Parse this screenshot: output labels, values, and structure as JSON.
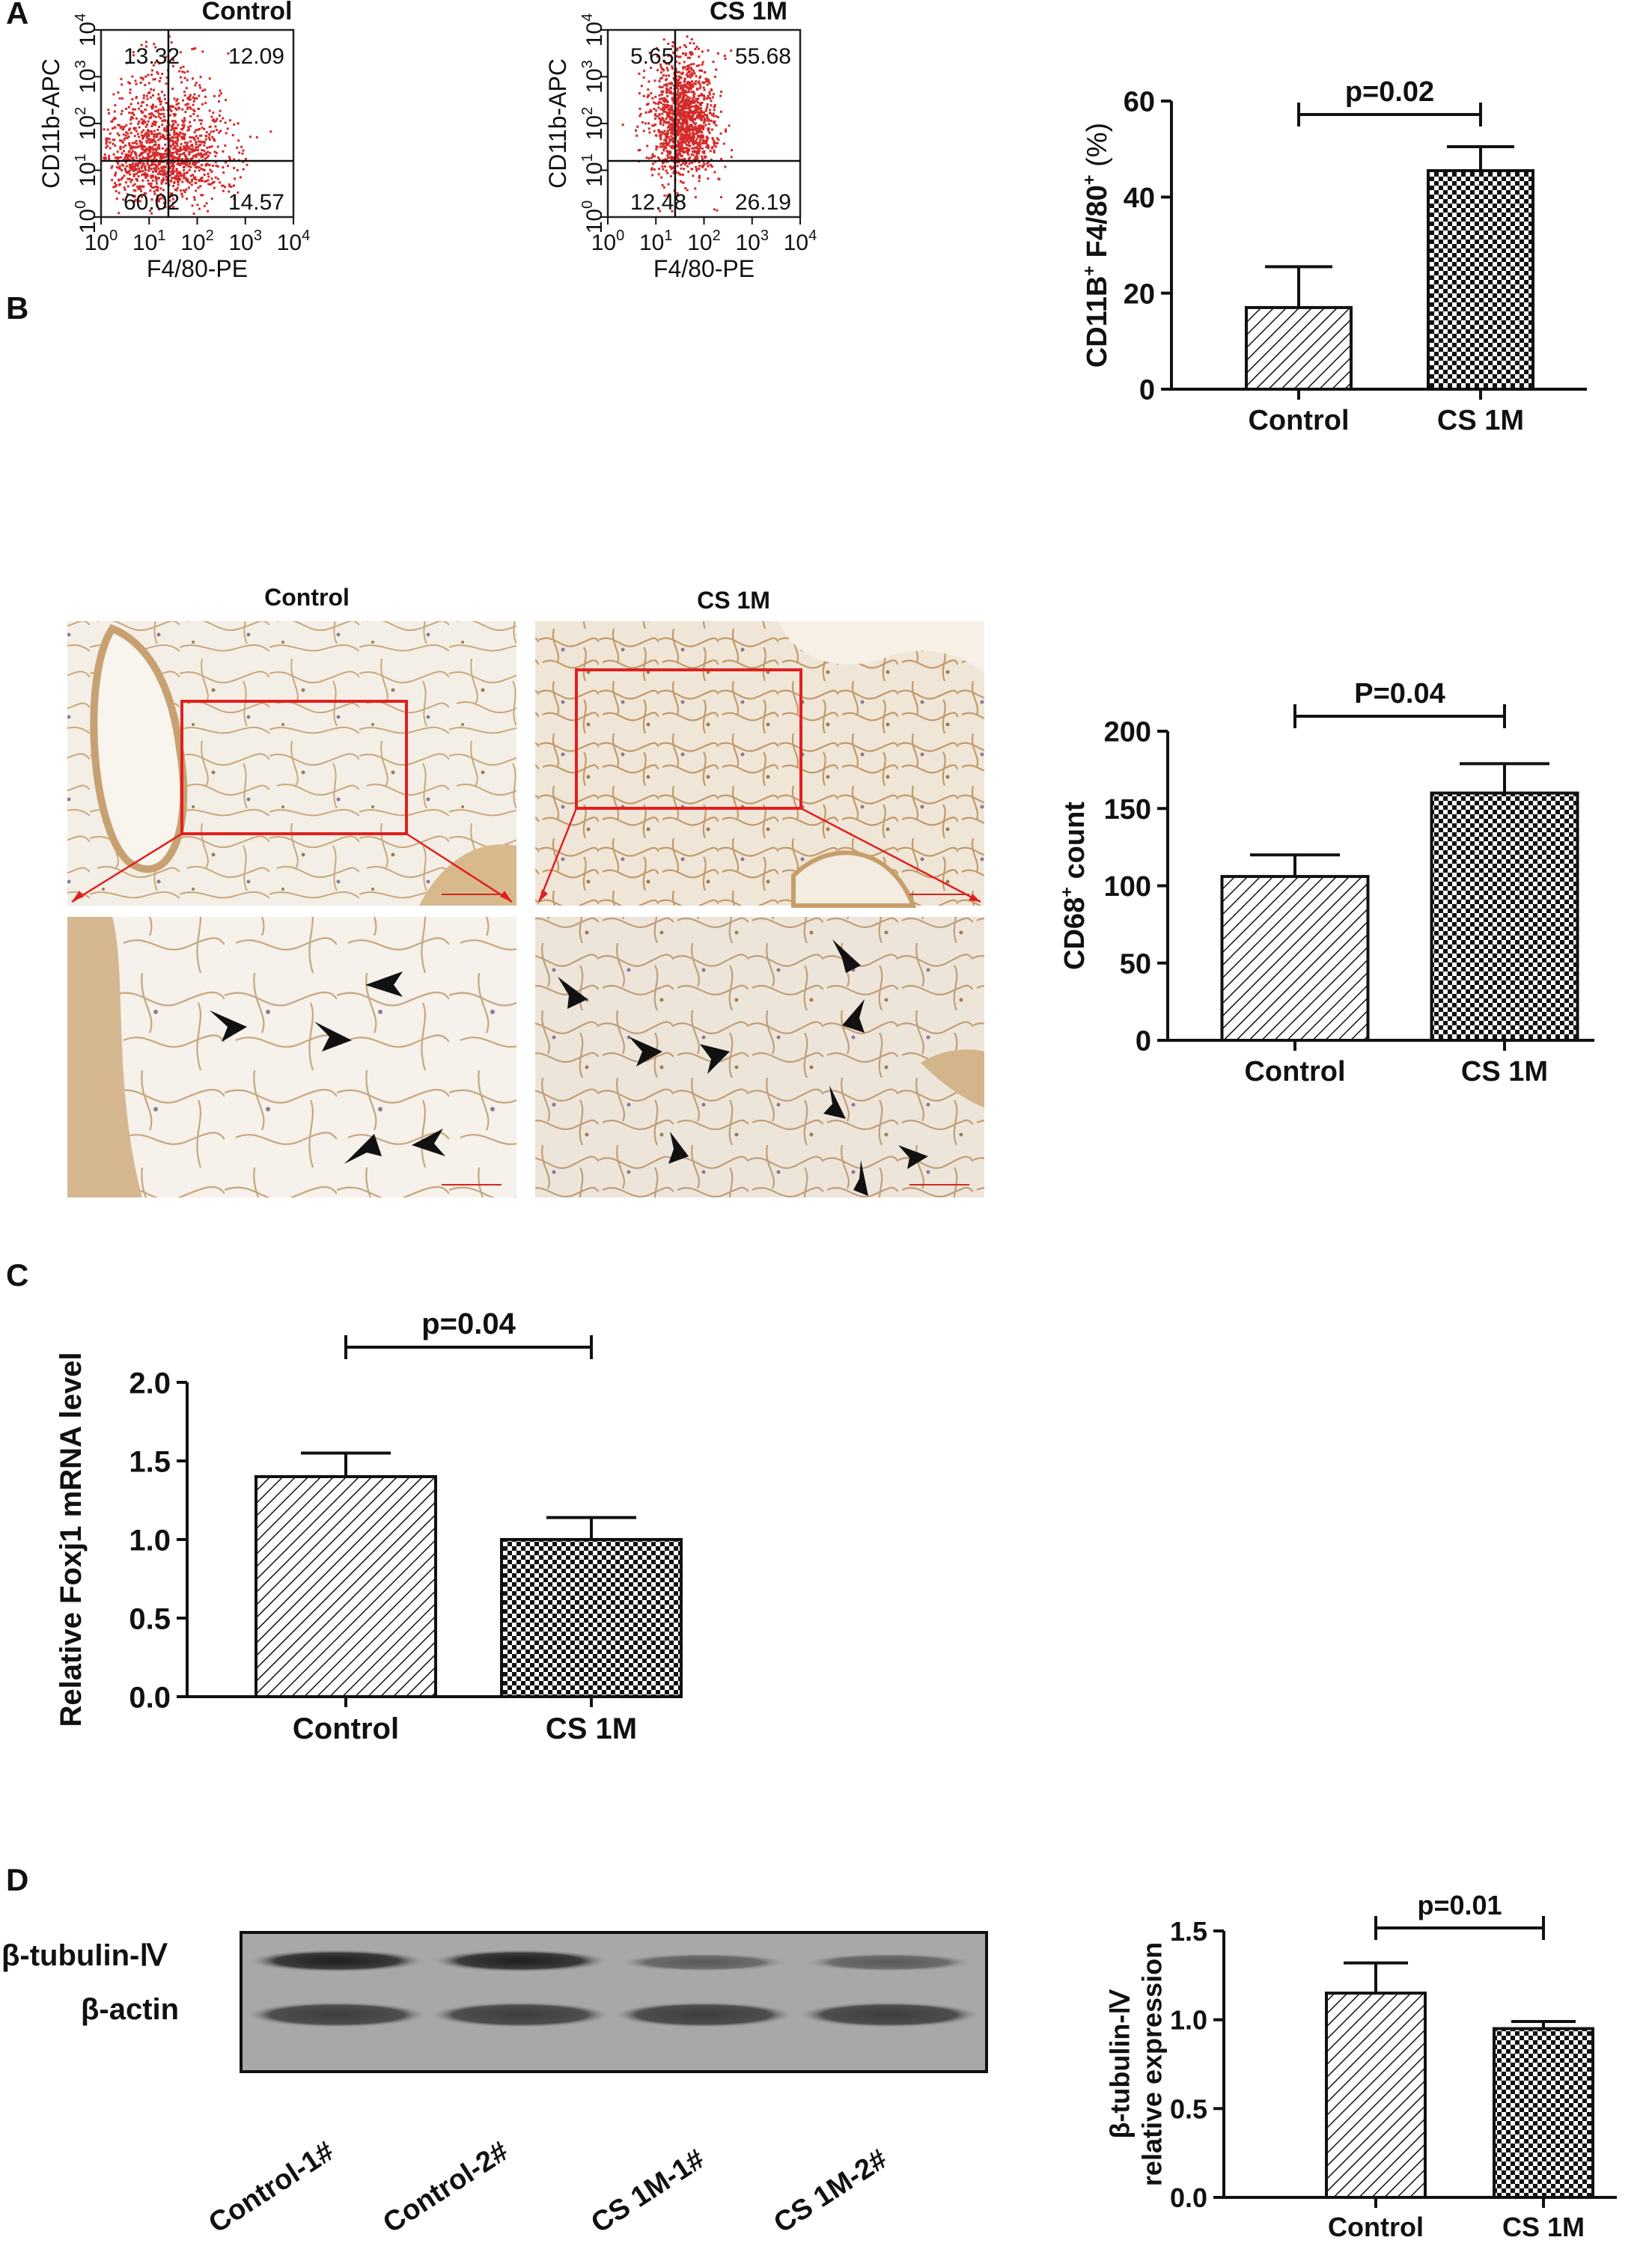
{
  "panels": {
    "a": {
      "letter": "A",
      "flow_titles": [
        "Control",
        "CS 1M"
      ],
      "flow_ylabel": "CD11b-APC",
      "flow_xlabel": "F4/80-PE",
      "flow_ticks": [
        "10",
        "10",
        "10",
        "10",
        "10"
      ],
      "flow_tick_exps": [
        "0",
        "1",
        "2",
        "3",
        "4"
      ],
      "quadrants": [
        {
          "ul": "13.32",
          "ur": "12.09",
          "ll": "60.02",
          "lr": "14.57"
        },
        {
          "ul": "5.65",
          "ur": "55.68",
          "ll": "12.48",
          "lr": "26.19"
        }
      ]
    },
    "b": {
      "letter": "B",
      "titles": [
        "Control",
        "CS 1M"
      ]
    },
    "c": {
      "letter": "C"
    },
    "d": {
      "letter": "D",
      "blot_labels": [
        "β-tubulin-Ⅳ",
        "β-actin"
      ],
      "lanes": [
        "Control-1#",
        "Control-2#",
        "CS 1M-1#",
        "CS 1M-2#"
      ]
    }
  },
  "chart_data": [
    {
      "type": "bar",
      "categories": [
        "Control",
        "CS 1M"
      ],
      "values": [
        17,
        45.5
      ],
      "errors": [
        8.5,
        5
      ],
      "ylabel_main": "CD11B",
      "ylabel_sup1": "+",
      "ylabel_mid": " F4/80",
      "ylabel_sup2": "+",
      "ylabel_tail": " (%)",
      "ylim": [
        0,
        60
      ],
      "yticks": [
        "0",
        "20",
        "40",
        "60"
      ],
      "annotation": "p=0.02"
    },
    {
      "type": "bar",
      "categories": [
        "Control",
        "CS 1M"
      ],
      "values": [
        106,
        160
      ],
      "errors": [
        14,
        19
      ],
      "ylabel_main": "CD68",
      "ylabel_sup1": "+",
      "ylabel_tail": " count",
      "ylim": [
        0,
        200
      ],
      "yticks": [
        "0",
        "50",
        "100",
        "150",
        "200"
      ],
      "annotation": "P=0.04"
    },
    {
      "type": "bar",
      "categories": [
        "Control",
        "CS 1M"
      ],
      "values": [
        1.4,
        1.0
      ],
      "errors": [
        0.15,
        0.14
      ],
      "ylabel": "Relative Foxj1 mRNA level",
      "ylim": [
        0,
        2.0
      ],
      "yticks": [
        "0.0",
        "0.5",
        "1.0",
        "1.5",
        "2.0"
      ],
      "annotation": "p=0.04"
    },
    {
      "type": "bar",
      "categories": [
        "Control",
        "CS 1M"
      ],
      "values": [
        1.15,
        0.95
      ],
      "errors": [
        0.17,
        0.04
      ],
      "ylabel": "β-tubulin-Ⅳ",
      "ylabel2": "relative expression",
      "ylim": [
        0,
        1.5
      ],
      "yticks": [
        "0.0",
        "0.5",
        "1.0",
        "1.5"
      ],
      "annotation": "p=0.01"
    }
  ]
}
